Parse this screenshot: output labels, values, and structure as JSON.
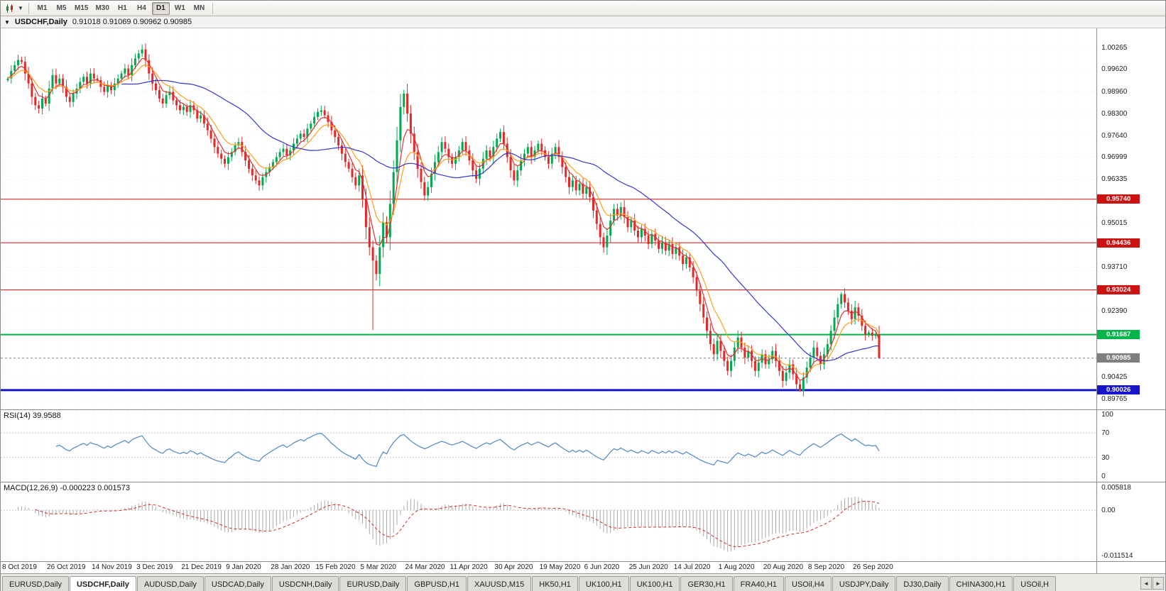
{
  "toolbar": {
    "timeframes": [
      "M1",
      "M5",
      "M15",
      "M30",
      "H1",
      "H4",
      "D1",
      "W1",
      "MN"
    ],
    "active_timeframe": "D1"
  },
  "chart_window": {
    "symbol_title": "USDCHF,Daily",
    "ohlc_text": "0.91018 0.91069 0.90962 0.90985"
  },
  "price_axis": {
    "labels": [
      {
        "text": "1.00265",
        "price": 1.00265
      },
      {
        "text": "0.99620",
        "price": 0.9962
      },
      {
        "text": "0.98960",
        "price": 0.9896
      },
      {
        "text": "0.98300",
        "price": 0.983
      },
      {
        "text": "0.97640",
        "price": 0.9764
      },
      {
        "text": "0.96999",
        "price": 0.96999
      },
      {
        "text": "0.96335",
        "price": 0.96335
      },
      {
        "text": "0.95015",
        "price": 0.95015
      },
      {
        "text": "0.93710",
        "price": 0.9371
      },
      {
        "text": "0.92390",
        "price": 0.9239
      },
      {
        "text": "0.90425",
        "price": 0.90425
      },
      {
        "text": "0.89765",
        "price": 0.89765
      }
    ]
  },
  "indicators": {
    "rsi": {
      "label": "RSI(14) 39.9588",
      "period": 14,
      "last_value": 39.9588,
      "line_color": "#4f87c7",
      "levels": [
        70,
        30
      ],
      "axis_labels": [
        {
          "text": "100",
          "value": 100
        },
        {
          "text": "70",
          "value": 70
        },
        {
          "text": "30",
          "value": 30
        },
        {
          "text": "0",
          "value": 0
        }
      ]
    },
    "macd": {
      "label": "MACD(12,26,9) -0.000223 0.001573",
      "fast": 12,
      "slow": 26,
      "signal": 9,
      "main_last": -0.000223,
      "signal_last": 0.001573,
      "hist_color": "#a9a9a9",
      "signal_color": "#d62b2b",
      "ylim": [
        -0.0122,
        0.0063
      ],
      "axis_labels": [
        {
          "text": "0.005818",
          "value": 0.005818
        },
        {
          "text": "0.00",
          "value": 0
        },
        {
          "text": "-0.011514",
          "value": -0.011514
        }
      ]
    }
  },
  "tabs": {
    "items": [
      "EURUSD,Daily",
      "USDCHF,Daily",
      "AUDUSD,Daily",
      "USDCAD,Daily",
      "USDCNH,Daily",
      "EURUSD,Daily",
      "GBPUSD,H1",
      "XAUUSD,M15",
      "HK50,H1",
      "UK100,H1",
      "UK100,H1",
      "GER30,H1",
      "FRA40,H1",
      "USOil,H4",
      "USDJPY,Daily",
      "DJ30,Daily",
      "CHINA300,H1",
      "USOil,H"
    ],
    "active_index": 1,
    "scroll_left": "◄",
    "scroll_right": "►"
  },
  "chart_data": {
    "type": "candlestick",
    "symbol": "USDCHF",
    "timeframe": "Daily",
    "ohlc_current": {
      "open": 0.91018,
      "high": 0.91069,
      "low": 0.90962,
      "close": 0.90985
    },
    "ylim": [
      0.8945,
      1.0085
    ],
    "up_color": "#00a84f",
    "down_color": "#e32828",
    "first_open": 0.993,
    "closes": [
      0.9935,
      0.9958,
      0.9975,
      0.999,
      0.9985,
      0.995,
      0.992,
      0.988,
      0.9855,
      0.9845,
      0.9875,
      0.986,
      0.9905,
      0.9945,
      0.992,
      0.9935,
      0.991,
      0.988,
      0.9865,
      0.989,
      0.9905,
      0.9925,
      0.994,
      0.992,
      0.995,
      0.9935,
      0.993,
      0.991,
      0.9895,
      0.9915,
      0.99,
      0.992,
      0.9935,
      0.995,
      0.9965,
      0.9945,
      0.9975,
      0.9995,
      1.001,
      1.0022,
      0.999,
      0.995,
      0.992,
      0.99,
      0.9875,
      0.986,
      0.9885,
      0.9895,
      0.987,
      0.9855,
      0.984,
      0.985,
      0.9835,
      0.9855,
      0.984,
      0.9815,
      0.9825,
      0.98,
      0.978,
      0.9755,
      0.973,
      0.971,
      0.9695,
      0.968,
      0.97,
      0.9715,
      0.9735,
      0.9745,
      0.9715,
      0.969,
      0.9665,
      0.9645,
      0.963,
      0.9615,
      0.964,
      0.9655,
      0.967,
      0.9685,
      0.97,
      0.9715,
      0.9725,
      0.9705,
      0.972,
      0.974,
      0.9755,
      0.977,
      0.976,
      0.9785,
      0.98,
      0.982,
      0.9835,
      0.984,
      0.9825,
      0.9805,
      0.978,
      0.976,
      0.9735,
      0.971,
      0.9685,
      0.9665,
      0.964,
      0.9615,
      0.9645,
      0.9575,
      0.949,
      0.943,
      0.939,
      0.935,
      0.943,
      0.9505,
      0.946,
      0.956,
      0.9655,
      0.975,
      0.985,
      0.989,
      0.983,
      0.977,
      0.9715,
      0.9665,
      0.9625,
      0.9585,
      0.961,
      0.965,
      0.9685,
      0.9715,
      0.9745,
      0.9725,
      0.97,
      0.968,
      0.97,
      0.972,
      0.9745,
      0.972,
      0.969,
      0.966,
      0.9635,
      0.9665,
      0.9695,
      0.972,
      0.97,
      0.973,
      0.9755,
      0.9775,
      0.974,
      0.97,
      0.966,
      0.963,
      0.966,
      0.969,
      0.971,
      0.973,
      0.97,
      0.972,
      0.974,
      0.972,
      0.97,
      0.968,
      0.971,
      0.973,
      0.97,
      0.967,
      0.964,
      0.961,
      0.963,
      0.96,
      0.962,
      0.959,
      0.961,
      0.958,
      0.954,
      0.95,
      0.946,
      0.943,
      0.9465,
      0.951,
      0.9545,
      0.9525,
      0.955,
      0.952,
      0.949,
      0.951,
      0.948,
      0.946,
      0.9485,
      0.9465,
      0.944,
      0.947,
      0.945,
      0.9425,
      0.9445,
      0.942,
      0.944,
      0.941,
      0.943,
      0.9405,
      0.938,
      0.94,
      0.937,
      0.934,
      0.93,
      0.926,
      0.922,
      0.918,
      0.914,
      0.911,
      0.915,
      0.912,
      0.909,
      0.906,
      0.909,
      0.913,
      0.916,
      0.913,
      0.91,
      0.912,
      0.909,
      0.906,
      0.9085,
      0.911,
      0.908,
      0.9095,
      0.912,
      0.909,
      0.906,
      0.903,
      0.9055,
      0.908,
      0.905,
      0.902,
      0.9,
      0.904,
      0.907,
      0.91,
      0.913,
      0.9105,
      0.908,
      0.911,
      0.914,
      0.918,
      0.922,
      0.926,
      0.929,
      0.9265,
      0.924,
      0.9215,
      0.925,
      0.9225,
      0.9195,
      0.917,
      0.9175,
      0.9165,
      0.917,
      0.9099
    ],
    "wick_overrides": [
      {
        "i": 106,
        "low": 0.9182
      },
      {
        "i": 115,
        "high": 0.9901
      },
      {
        "i": 230,
        "low": 0.8997
      },
      {
        "i": 242,
        "high": 0.9296
      },
      {
        "i": 253,
        "low": 0.9096
      }
    ],
    "ma": [
      {
        "period": 5,
        "type": "ema",
        "color": "#e03131"
      },
      {
        "period": 10,
        "type": "ema",
        "color": "#ff9f1a"
      },
      {
        "period": 34,
        "type": "sma",
        "color": "#3535d3"
      }
    ],
    "levels": [
      {
        "price": 0.9574,
        "text": "0.95740",
        "color": "#cc1111",
        "width": 1
      },
      {
        "price": 0.94436,
        "text": "0.94436",
        "color": "#cc1111",
        "width": 1
      },
      {
        "price": 0.93024,
        "text": "0.93024",
        "color": "#cc1111",
        "width": 1
      },
      {
        "price": 0.91687,
        "text": "0.91687",
        "color": "#00b44a",
        "width": 2
      },
      {
        "price": 0.90026,
        "text": "0.90026",
        "color": "#1616c8",
        "width": 3
      },
      {
        "price": 0.90985,
        "text": "0.90985",
        "color": "#7f7f7f",
        "width": 1,
        "dashed": true,
        "kind": "current-price"
      }
    ],
    "date_labels": [
      "8 Oct 2019",
      "26 Oct 2019",
      "14 Nov 2019",
      "3 Dec 2019",
      "21 Dec 2019",
      "9 Jan 2020",
      "28 Jan 2020",
      "15 Feb 2020",
      "5 Mar 2020",
      "24 Mar 2020",
      "11 Apr 2020",
      "30 Apr 2020",
      "19 May 2020",
      "6 Jun 2020",
      "25 Jun 2020",
      "14 Jul 2020",
      "1 Aug 2020",
      "20 Aug 2020",
      "8 Sep 2020",
      "26 Sep 2020"
    ],
    "candles_per_label": 13
  }
}
